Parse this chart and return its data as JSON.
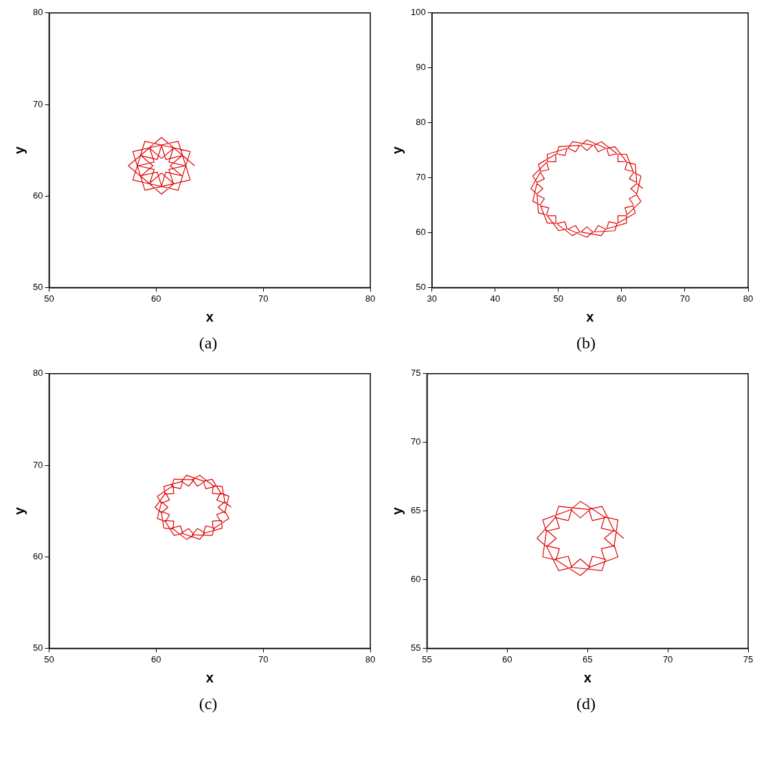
{
  "chart_data": [
    {
      "type": "line",
      "xlabel": "x",
      "ylabel": "y",
      "xlim": [
        50,
        80
      ],
      "ylim": [
        50,
        80
      ],
      "xticks": [
        50,
        60,
        70,
        80
      ],
      "yticks": [
        50,
        60,
        70,
        80
      ],
      "annotations": [
        "(a)"
      ],
      "series": [
        {
          "color": "#e00000",
          "x": [
            63.6,
            62.45,
            61.3,
            62.45,
            63.18,
            61.62,
            61.19,
            62.77,
            62.05,
            60.48,
            60.9,
            62.47,
            60.5,
            59.35,
            60.5,
            61.65,
            58.95,
            58.53,
            60.1,
            60.52,
            57.82,
            58.24,
            59.81,
            59.39,
            57.4,
            58.55,
            59.7,
            58.55,
            57.82,
            59.39,
            59.81,
            58.24,
            58.95,
            60.52,
            60.1,
            58.53,
            60.5,
            61.65,
            60.5,
            59.35,
            62.05,
            62.47,
            60.9,
            60.48,
            63.18,
            62.77,
            61.19,
            61.62
          ],
          "values": [
            63.3,
            64.45,
            63.3,
            62.15,
            64.85,
            65.27,
            63.7,
            63.28,
            65.98,
            65.57,
            63.99,
            64.42,
            66.4,
            65.25,
            64.1,
            65.25,
            65.98,
            64.42,
            63.99,
            65.57,
            64.85,
            63.28,
            63.7,
            65.27,
            63.3,
            62.15,
            63.3,
            64.45,
            61.75,
            61.33,
            62.9,
            63.32,
            60.62,
            61.04,
            62.61,
            62.19,
            60.2,
            61.35,
            62.5,
            61.35,
            60.62,
            62.19,
            62.61,
            61.04,
            61.75,
            63.32,
            62.9,
            61.33
          ]
        }
      ]
    },
    {
      "type": "line",
      "xlabel": "x",
      "ylabel": "y",
      "xlim": [
        30,
        80
      ],
      "ylim": [
        50,
        100
      ],
      "xticks": [
        30,
        40,
        50,
        60,
        70,
        80
      ],
      "yticks": [
        50,
        60,
        70,
        80,
        90,
        100
      ],
      "annotations": [
        "(b)"
      ],
      "series": [
        {
          "color": "#e00000",
          "x": [
            63.35,
            62.4,
            61.45,
            62.4,
            63.05,
            61.88,
            61.21,
            62.38,
            62.16,
            60.86,
            60.52,
            61.82,
            60.76,
            59.42,
            59.41,
            60.76,
            58.93,
            57.63,
            57.98,
            59.27,
            56.79,
            55.63,
            56.3,
            57.47,
            54.5,
            53.55,
            54.5,
            55.45,
            52.21,
            51.53,
            52.7,
            53.37,
            50.07,
            49.73,
            51.02,
            51.37,
            48.24,
            48.24,
            49.59,
            49.58,
            46.84,
            47.18,
            48.48,
            48.14,
            45.95,
            46.62,
            47.79,
            47.12,
            45.65,
            46.6,
            47.55,
            46.6,
            45.95,
            47.12,
            47.79,
            46.62,
            46.84,
            48.14,
            48.48,
            47.18,
            48.24,
            49.58,
            49.59,
            48.24,
            50.07,
            51.37,
            51.02,
            49.73,
            52.21,
            53.37,
            52.7,
            51.53,
            54.5,
            55.45,
            54.5,
            53.55,
            56.79,
            57.47,
            56.3,
            55.63,
            58.93,
            59.27,
            57.98,
            57.63,
            60.76,
            60.76,
            59.41,
            59.42,
            62.16,
            61.82,
            60.52,
            60.86,
            63.05,
            62.38,
            61.21,
            61.88
          ],
          "values": [
            68,
            68.95,
            68,
            67.05,
            70.29,
            70.97,
            69.8,
            69.13,
            72.43,
            72.77,
            71.48,
            71.13,
            74.26,
            74.26,
            72.91,
            72.92,
            75.66,
            75.32,
            74.02,
            74.36,
            76.55,
            75.88,
            74.71,
            75.38,
            76.85,
            75.9,
            74.95,
            75.9,
            76.55,
            75.38,
            74.71,
            75.88,
            75.66,
            74.36,
            74.02,
            75.32,
            74.26,
            72.92,
            72.91,
            74.26,
            72.43,
            71.13,
            71.48,
            72.77,
            70.29,
            69.13,
            69.8,
            70.97,
            68,
            67.05,
            68,
            68.95,
            65.71,
            65.03,
            66.2,
            66.87,
            63.57,
            63.23,
            64.52,
            64.87,
            61.74,
            61.74,
            63.09,
            63.08,
            60.34,
            60.68,
            61.98,
            61.64,
            59.45,
            60.12,
            61.29,
            60.62,
            59.15,
            60.1,
            61.05,
            60.1,
            59.45,
            60.62,
            61.29,
            60.12,
            60.34,
            61.64,
            61.98,
            60.68,
            61.74,
            63.08,
            63.09,
            61.74,
            63.57,
            64.87,
            64.52,
            63.23,
            65.71,
            66.87,
            66.2,
            65.03
          ]
        }
      ]
    },
    {
      "type": "line",
      "xlabel": "x",
      "ylabel": "y",
      "xlim": [
        50,
        80
      ],
      "ylim": [
        50,
        80
      ],
      "xticks": [
        50,
        60,
        70,
        80
      ],
      "yticks": [
        50,
        60,
        70,
        80
      ],
      "annotations": [
        "(c)"
      ],
      "series": [
        {
          "color": "#e00000",
          "x": [
            67.0,
            66.4,
            65.8,
            66.4,
            66.79,
            66.01,
            65.66,
            66.43,
            66.17,
            65.32,
            65.25,
            66.1,
            65.23,
            64.41,
            64.63,
            65.45,
            64.07,
            63.37,
            63.86,
            64.55,
            62.83,
            62.35,
            63.04,
            63.53,
            61.67,
            61.45,
            62.27,
            62.49,
            60.73,
            60.8,
            61.65,
            61.58,
            60.11,
            60.47,
            61.24,
            60.89,
            59.9,
            60.5,
            61.1,
            60.5,
            60.11,
            60.89,
            61.24,
            60.47,
            60.73,
            61.58,
            61.65,
            60.8,
            61.67,
            62.49,
            62.27,
            61.45,
            62.83,
            63.53,
            63.04,
            62.35,
            64.07,
            64.55,
            63.86,
            63.37,
            65.23,
            65.45,
            64.63,
            64.41,
            66.17,
            66.1,
            65.25,
            65.32,
            66.79,
            66.43,
            65.66,
            66.01
          ],
          "values": [
            65.4,
            66.0,
            65.4,
            64.8,
            66.61,
            66.97,
            66.2,
            65.85,
            67.68,
            67.76,
            66.91,
            66.84,
            68.47,
            68.25,
            67.44,
            67.65,
            68.9,
            68.41,
            67.71,
            68.21,
            68.9,
            68.21,
            67.71,
            68.41,
            68.47,
            67.65,
            67.44,
            68.25,
            67.68,
            66.84,
            66.91,
            67.76,
            66.61,
            65.85,
            66.2,
            66.97,
            65.4,
            64.8,
            65.4,
            66.0,
            64.19,
            63.83,
            64.6,
            64.95,
            63.12,
            63.04,
            63.89,
            63.96,
            62.33,
            62.55,
            63.36,
            63.15,
            61.9,
            62.39,
            63.09,
            62.59,
            61.9,
            62.59,
            63.09,
            62.39,
            62.33,
            63.15,
            63.36,
            62.55,
            63.12,
            63.96,
            63.89,
            63.04,
            64.19,
            64.95,
            64.6,
            63.83
          ]
        }
      ]
    },
    {
      "type": "line",
      "xlabel": "x",
      "ylabel": "y",
      "xlim": [
        55,
        75
      ],
      "ylim": [
        55,
        75
      ],
      "xticks": [
        55,
        60,
        65,
        70,
        75
      ],
      "yticks": [
        55,
        60,
        65,
        70,
        75
      ],
      "annotations": [
        "(d)"
      ],
      "series": [
        {
          "color": "#e00000",
          "x": [
            67.25,
            66.65,
            66.05,
            66.65,
            66.89,
            66.07,
            65.85,
            66.67,
            65.9,
            65.08,
            65.3,
            66.12,
            64.55,
            63.95,
            64.55,
            65.15,
            63.2,
            62.98,
            63.8,
            64.02,
            62.21,
            62.43,
            63.25,
            63.03,
            61.85,
            62.45,
            63.05,
            62.45,
            62.21,
            63.03,
            63.25,
            62.43,
            63.2,
            64.02,
            63.8,
            62.98,
            64.55,
            65.15,
            64.55,
            63.95,
            65.9,
            66.12,
            65.3,
            65.08,
            66.89,
            66.67,
            65.85,
            66.07
          ],
          "values": [
            63,
            63.6,
            63,
            62.4,
            64.35,
            64.57,
            63.75,
            63.53,
            65.34,
            65.12,
            64.3,
            64.52,
            65.7,
            65.1,
            64.5,
            65.1,
            65.34,
            64.52,
            64.3,
            65.12,
            64.35,
            63.53,
            63.75,
            64.57,
            63,
            62.4,
            63,
            63.6,
            61.65,
            61.43,
            62.25,
            62.47,
            60.66,
            60.88,
            61.7,
            61.48,
            60.3,
            60.9,
            61.5,
            60.9,
            60.66,
            61.48,
            61.7,
            60.88,
            61.65,
            62.47,
            62.25,
            61.43
          ]
        }
      ]
    }
  ]
}
